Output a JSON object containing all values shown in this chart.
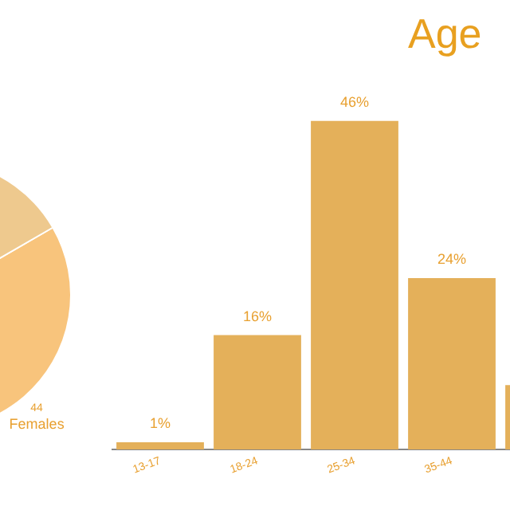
{
  "chart_data": [
    {
      "type": "pie",
      "categories": [
        "Females",
        null
      ],
      "values": [
        44,
        56
      ],
      "colors": [
        "#f8c47c",
        "#eec98e"
      ],
      "value_labels": [
        "44",
        null
      ],
      "legend": false
    },
    {
      "type": "bar",
      "title": "Age",
      "categories": [
        "13-17",
        "18-24",
        "25-34",
        "35-44",
        null
      ],
      "values": [
        1,
        16,
        46,
        24,
        9
      ],
      "color": "#e4b05a",
      "value_labels": [
        "1%",
        "16%",
        "46%",
        "24%",
        null
      ],
      "tick_labels": "x",
      "grid": false,
      "legend": false
    }
  ]
}
